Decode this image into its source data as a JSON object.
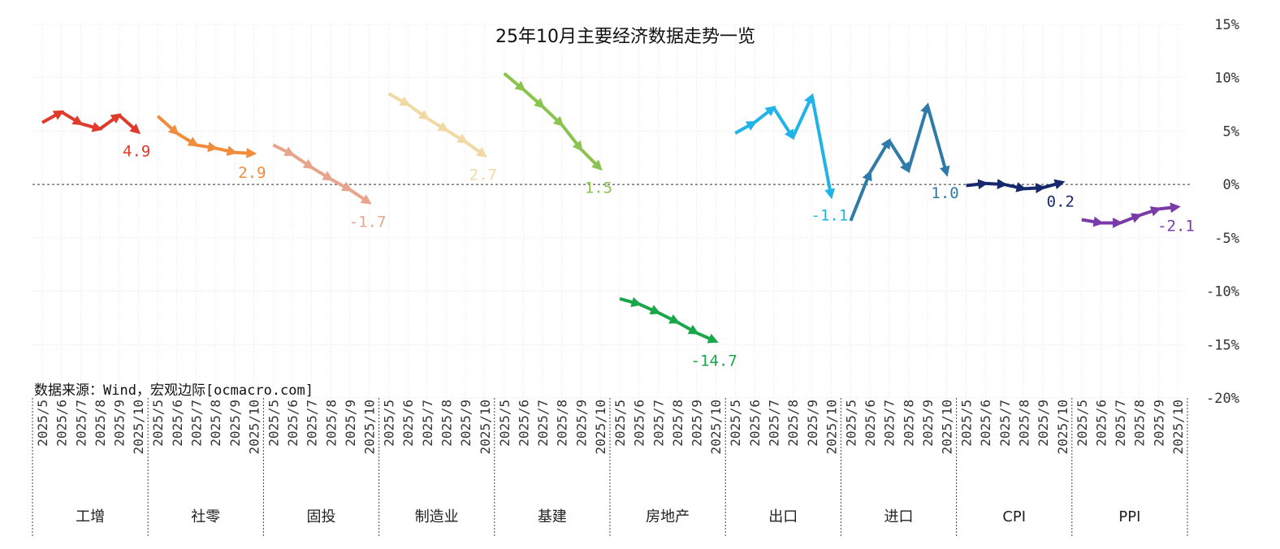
{
  "chart_data": {
    "type": "line",
    "title": "25年10月主要经济数据走势一览",
    "source": "数据来源：Wind，宏观边际[ocmacro.com]",
    "ylim": [
      -20,
      15
    ],
    "yticks": [
      15,
      10,
      5,
      0,
      -5,
      -10,
      -15,
      -20
    ],
    "ytick_labels": [
      "15%",
      "10%",
      "5%",
      "0%",
      "-5%",
      "-10%",
      "-15%",
      "-20%"
    ],
    "months": [
      "2025/5",
      "2025/6",
      "2025/7",
      "2025/8",
      "2025/9",
      "2025/10"
    ],
    "grid": true,
    "groups": [
      {
        "name": "工增",
        "color": "#e03a2a",
        "values": [
          5.8,
          6.8,
          5.7,
          5.2,
          6.5,
          4.9
        ],
        "last_label": "4.9"
      },
      {
        "name": "社零",
        "color": "#f08c3a",
        "values": [
          6.4,
          4.8,
          3.7,
          3.4,
          3.0,
          2.9
        ],
        "last_label": "2.9"
      },
      {
        "name": "固投",
        "color": "#e8a48c",
        "values": [
          3.7,
          2.8,
          1.6,
          0.5,
          -0.5,
          -1.7
        ],
        "last_label": "-1.7"
      },
      {
        "name": "制造业",
        "color": "#f1d9a3",
        "values": [
          8.5,
          7.5,
          6.2,
          5.1,
          4.0,
          2.7
        ],
        "last_label": "2.7"
      },
      {
        "name": "基建",
        "color": "#8ac44e",
        "values": [
          10.4,
          8.9,
          7.3,
          5.6,
          3.3,
          1.5
        ],
        "last_label": "1.5"
      },
      {
        "name": "房地产",
        "color": "#1aa64a",
        "values": [
          -10.7,
          -11.2,
          -12.0,
          -12.9,
          -13.9,
          -14.7
        ],
        "last_label": "-14.7"
      },
      {
        "name": "出口",
        "color": "#1fb3e8",
        "values": [
          4.8,
          5.8,
          7.2,
          4.4,
          8.3,
          -1.1
        ],
        "last_label": "-1.1"
      },
      {
        "name": "进口",
        "color": "#2f7aa8",
        "values": [
          -3.4,
          1.1,
          4.1,
          1.3,
          7.4,
          1.0
        ],
        "last_label": "1.0"
      },
      {
        "name": "CPI",
        "color": "#17296e",
        "values": [
          -0.1,
          0.1,
          0.0,
          -0.4,
          -0.3,
          0.2
        ],
        "last_label": "0.2"
      },
      {
        "name": "PPI",
        "color": "#7a3aa8",
        "values": [
          -3.3,
          -3.6,
          -3.6,
          -2.9,
          -2.3,
          -2.1
        ],
        "last_label": "-2.1"
      }
    ]
  }
}
